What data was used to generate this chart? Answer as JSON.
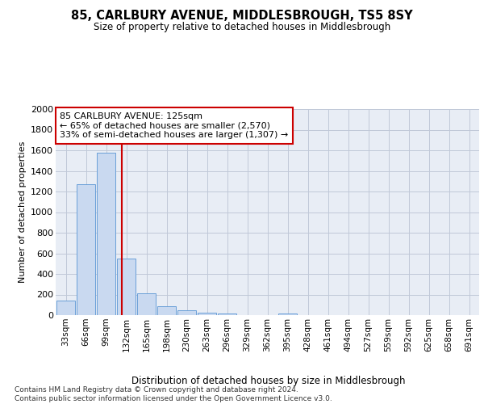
{
  "title": "85, CARLBURY AVENUE, MIDDLESBROUGH, TS5 8SY",
  "subtitle": "Size of property relative to detached houses in Middlesbrough",
  "xlabel": "Distribution of detached houses by size in Middlesbrough",
  "ylabel": "Number of detached properties",
  "categories": [
    "33sqm",
    "66sqm",
    "99sqm",
    "132sqm",
    "165sqm",
    "198sqm",
    "230sqm",
    "263sqm",
    "296sqm",
    "329sqm",
    "362sqm",
    "395sqm",
    "428sqm",
    "461sqm",
    "494sqm",
    "527sqm",
    "559sqm",
    "592sqm",
    "625sqm",
    "658sqm",
    "691sqm"
  ],
  "values": [
    140,
    1270,
    1580,
    550,
    210,
    90,
    45,
    20,
    15,
    0,
    0,
    15,
    0,
    0,
    0,
    0,
    0,
    0,
    0,
    0,
    0
  ],
  "bar_color": "#c9d9f0",
  "bar_edge_color": "#6a9fd8",
  "grid_color": "#c0c8d8",
  "background_color": "#e8edf5",
  "vline_color": "#cc0000",
  "annotation_text": "85 CARLBURY AVENUE: 125sqm\n← 65% of detached houses are smaller (2,570)\n33% of semi-detached houses are larger (1,307) →",
  "annotation_box_color": "#ffffff",
  "annotation_box_edge": "#cc0000",
  "footer_text": "Contains HM Land Registry data © Crown copyright and database right 2024.\nContains public sector information licensed under the Open Government Licence v3.0.",
  "ylim": [
    0,
    2000
  ],
  "yticks": [
    0,
    200,
    400,
    600,
    800,
    1000,
    1200,
    1400,
    1600,
    1800,
    2000
  ]
}
